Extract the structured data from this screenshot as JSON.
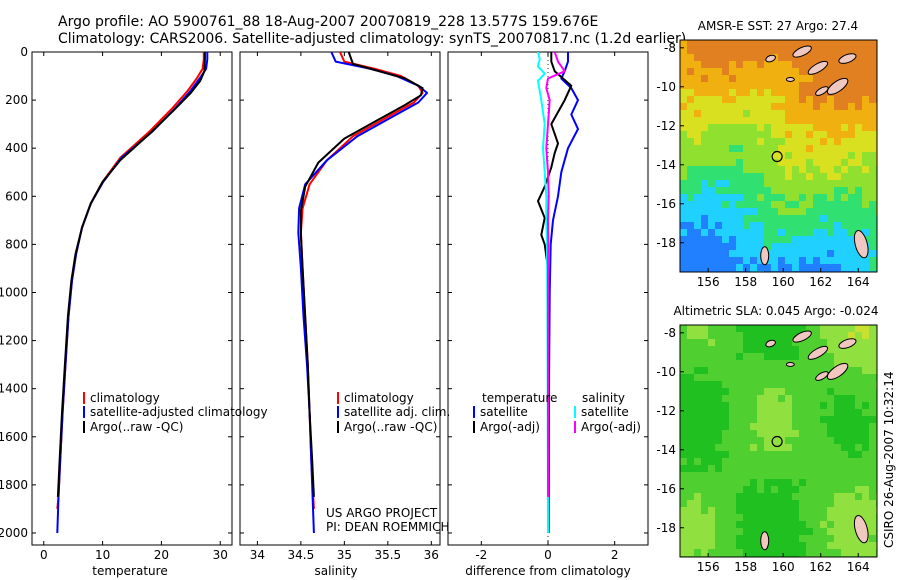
{
  "header": {
    "line1": "Argo profile: AO 5900761_88 18-Aug-2007 20070819_228 13.577S 159.676E",
    "line2": "Climatology: CARS2006. Satellite-adjusted climatology: synTS_20070817.nc (1.2d earlier)"
  },
  "side_note": "CSIRO 26-Aug-2007 10:32:14",
  "credit": [
    "US ARGO PROJECT",
    "PI: DEAN ROEMMICH"
  ],
  "colors": {
    "climatology": "#ff0000",
    "satellite": "#0000ff",
    "argo": "#000000",
    "salinity_satellite": "#00ffff",
    "salinity_argo": "#ff00ff"
  },
  "chart_data": [
    {
      "id": "temperature",
      "type": "line",
      "xlabel": "temperature",
      "xlim": [
        -2,
        32
      ],
      "ylim": [
        2050,
        0
      ],
      "xticks": [
        0,
        10,
        20,
        30
      ],
      "yticks": [
        0,
        200,
        400,
        600,
        800,
        1000,
        1200,
        1400,
        1600,
        1800,
        2000
      ],
      "legend": [
        "climatology",
        "satellite-adjusted climatology",
        "Argo(..raw -QC)"
      ],
      "legend_position": "lower-right",
      "series": [
        {
          "name": "climatology",
          "color": "#ff0000",
          "points": [
            [
              27.2,
              0
            ],
            [
              27.2,
              30
            ],
            [
              27.0,
              70
            ],
            [
              26.0,
              110
            ],
            [
              24.5,
              160
            ],
            [
              22.0,
              230
            ],
            [
              18.0,
              330
            ],
            [
              13.0,
              440
            ],
            [
              10.0,
              540
            ],
            [
              8.0,
              630
            ],
            [
              6.5,
              730
            ],
            [
              5.5,
              840
            ],
            [
              4.8,
              950
            ],
            [
              4.2,
              1100
            ],
            [
              3.7,
              1300
            ],
            [
              3.2,
              1500
            ],
            [
              2.8,
              1700
            ],
            [
              2.5,
              1850
            ],
            [
              2.3,
              1900
            ]
          ]
        },
        {
          "name": "satellite-adjusted climatology",
          "color": "#0000ff",
          "points": [
            [
              27.8,
              0
            ],
            [
              27.8,
              30
            ],
            [
              27.6,
              70
            ],
            [
              26.5,
              110
            ],
            [
              25.0,
              160
            ],
            [
              22.5,
              230
            ],
            [
              18.5,
              330
            ],
            [
              13.2,
              440
            ],
            [
              10.1,
              540
            ],
            [
              8.0,
              630
            ],
            [
              6.5,
              730
            ],
            [
              5.5,
              840
            ],
            [
              4.8,
              950
            ],
            [
              4.2,
              1100
            ],
            [
              3.7,
              1300
            ],
            [
              3.2,
              1500
            ],
            [
              2.8,
              1700
            ],
            [
              2.5,
              1850
            ],
            [
              2.3,
              2000
            ]
          ]
        },
        {
          "name": "Argo(..raw -QC)",
          "color": "#000000",
          "points": [
            [
              27.4,
              0
            ],
            [
              27.4,
              30
            ],
            [
              27.3,
              80
            ],
            [
              26.6,
              120
            ],
            [
              25.0,
              170
            ],
            [
              22.2,
              240
            ],
            [
              18.0,
              340
            ],
            [
              13.0,
              450
            ],
            [
              10.0,
              540
            ],
            [
              8.0,
              630
            ],
            [
              6.5,
              730
            ],
            [
              5.4,
              840
            ],
            [
              4.7,
              950
            ],
            [
              4.1,
              1100
            ],
            [
              3.6,
              1300
            ],
            [
              3.1,
              1500
            ],
            [
              2.7,
              1700
            ],
            [
              2.4,
              1850
            ]
          ]
        }
      ]
    },
    {
      "id": "salinity",
      "type": "line",
      "xlabel": "salinity",
      "xlim": [
        33.8,
        36.1
      ],
      "ylim": [
        2050,
        0
      ],
      "xticks": [
        34,
        34.5,
        35,
        35.5,
        36
      ],
      "legend": [
        "climatology",
        "satellite adj. clim.",
        "Argo(..raw -QC)"
      ],
      "legend_position": "lower-right",
      "series": [
        {
          "name": "climatology",
          "color": "#ff0000",
          "points": [
            [
              34.95,
              0
            ],
            [
              35.0,
              40
            ],
            [
              35.35,
              70
            ],
            [
              35.65,
              100
            ],
            [
              35.85,
              140
            ],
            [
              35.9,
              170
            ],
            [
              35.8,
              210
            ],
            [
              35.5,
              270
            ],
            [
              35.1,
              350
            ],
            [
              34.8,
              450
            ],
            [
              34.6,
              550
            ],
            [
              34.52,
              650
            ],
            [
              34.5,
              750
            ],
            [
              34.52,
              900
            ],
            [
              34.55,
              1100
            ],
            [
              34.58,
              1300
            ],
            [
              34.6,
              1500
            ],
            [
              34.62,
              1700
            ],
            [
              34.65,
              1900
            ]
          ]
        },
        {
          "name": "satellite adj. clim.",
          "color": "#0000ff",
          "points": [
            [
              34.85,
              0
            ],
            [
              34.9,
              40
            ],
            [
              35.3,
              70
            ],
            [
              35.6,
              100
            ],
            [
              35.85,
              140
            ],
            [
              35.95,
              170
            ],
            [
              35.85,
              210
            ],
            [
              35.55,
              270
            ],
            [
              35.15,
              350
            ],
            [
              34.8,
              450
            ],
            [
              34.55,
              550
            ],
            [
              34.48,
              650
            ],
            [
              34.47,
              750
            ],
            [
              34.5,
              900
            ],
            [
              34.53,
              1100
            ],
            [
              34.57,
              1300
            ],
            [
              34.6,
              1500
            ],
            [
              34.62,
              1700
            ],
            [
              34.65,
              2000
            ]
          ]
        },
        {
          "name": "Argo(..raw -QC)",
          "color": "#000000",
          "points": [
            [
              35.05,
              0
            ],
            [
              35.1,
              50
            ],
            [
              35.4,
              80
            ],
            [
              35.7,
              110
            ],
            [
              35.9,
              150
            ],
            [
              35.88,
              180
            ],
            [
              35.7,
              220
            ],
            [
              35.4,
              280
            ],
            [
              35.0,
              360
            ],
            [
              34.7,
              460
            ],
            [
              34.55,
              560
            ],
            [
              34.5,
              660
            ],
            [
              34.5,
              760
            ],
            [
              34.52,
              900
            ],
            [
              34.55,
              1100
            ],
            [
              34.58,
              1300
            ],
            [
              34.6,
              1500
            ],
            [
              34.63,
              1700
            ],
            [
              34.65,
              1850
            ]
          ]
        }
      ]
    },
    {
      "id": "difference",
      "type": "line",
      "xlabel": "difference from climatology",
      "xlim": [
        -3,
        3
      ],
      "ylim": [
        2050,
        0
      ],
      "xticks": [
        -2,
        0,
        2
      ],
      "legend": [
        "temperature",
        "satellite",
        "Argo(-adj)",
        "salinity",
        "satellite",
        "Argo(-adj)"
      ],
      "legend_position": "lower-center",
      "series": [
        {
          "name": "temperature satellite",
          "color": "#0000ff",
          "points": [
            [
              0.6,
              0
            ],
            [
              0.6,
              40
            ],
            [
              0.5,
              80
            ],
            [
              0.4,
              110
            ],
            [
              0.7,
              150
            ],
            [
              0.9,
              200
            ],
            [
              0.7,
              260
            ],
            [
              0.9,
              320
            ],
            [
              0.6,
              400
            ],
            [
              0.4,
              500
            ],
            [
              0.3,
              600
            ],
            [
              0.15,
              700
            ],
            [
              0.08,
              800
            ],
            [
              0.05,
              1000
            ],
            [
              0.03,
              1400
            ],
            [
              0.02,
              2000
            ]
          ]
        },
        {
          "name": "temperature Argo(-adj)",
          "color": "#000000",
          "points": [
            [
              0.1,
              0
            ],
            [
              0.1,
              40
            ],
            [
              0.2,
              80
            ],
            [
              0.7,
              140
            ],
            [
              0.5,
              200
            ],
            [
              0.1,
              300
            ],
            [
              0.3,
              380
            ],
            [
              0.2,
              420
            ],
            [
              0.1,
              480
            ],
            [
              -0.1,
              560
            ],
            [
              -0.3,
              620
            ],
            [
              -0.1,
              690
            ],
            [
              -0.2,
              760
            ],
            [
              -0.1,
              800
            ],
            [
              0.0,
              900
            ],
            [
              0.0,
              1200
            ],
            [
              0.0,
              1850
            ]
          ]
        },
        {
          "name": "salinity satellite",
          "color": "#00ffff",
          "points": [
            [
              -0.3,
              0
            ],
            [
              -0.25,
              30
            ],
            [
              -0.3,
              60
            ],
            [
              -0.1,
              90
            ],
            [
              -0.3,
              120
            ],
            [
              -0.2,
              200
            ],
            [
              -0.1,
              300
            ],
            [
              -0.15,
              400
            ],
            [
              -0.1,
              500
            ],
            [
              -0.05,
              600
            ],
            [
              -0.05,
              700
            ],
            [
              -0.03,
              800
            ],
            [
              -0.02,
              1000
            ],
            [
              -0.01,
              1400
            ],
            [
              0.0,
              2000
            ]
          ]
        },
        {
          "name": "salinity Argo(-adj)",
          "color": "#ff00ff",
          "points": [
            [
              0.2,
              0
            ],
            [
              0.3,
              40
            ],
            [
              0.5,
              80
            ],
            [
              0.0,
              110
            ],
            [
              -0.05,
              150
            ],
            [
              0.05,
              200
            ],
            [
              0.0,
              300
            ],
            [
              -0.05,
              400
            ],
            [
              0.0,
              500
            ],
            [
              0.02,
              600
            ],
            [
              0.0,
              700
            ],
            [
              0.01,
              800
            ],
            [
              0.0,
              900
            ],
            [
              0.0,
              1200
            ],
            [
              0.0,
              1850
            ]
          ]
        }
      ]
    },
    {
      "id": "sst_map",
      "type": "heatmap",
      "title": "AMSR-E SST: 27  Argo: 27.4",
      "xlim": [
        154.5,
        165
      ],
      "ylim": [
        -19.5,
        -7.6
      ],
      "xticks": [
        156,
        158,
        160,
        162,
        164
      ],
      "yticks": [
        -8,
        -10,
        -12,
        -14,
        -16,
        -18
      ],
      "marker": [
        159.676,
        -13.577
      ],
      "colors": [
        "#2080ff",
        "#20d0ff",
        "#30e070",
        "#90e030",
        "#d8e020",
        "#f0b010",
        "#e08020"
      ]
    },
    {
      "id": "sla_map",
      "type": "heatmap",
      "title": "Altimetric SLA: 0.045  Argo: -0.024",
      "xlim": [
        154.5,
        165
      ],
      "ylim": [
        -19.5,
        -7.6
      ],
      "xticks": [
        156,
        158,
        160,
        162,
        164
      ],
      "yticks": [
        -8,
        -10,
        -12,
        -14,
        -16,
        -18
      ],
      "marker": [
        159.676,
        -13.577
      ],
      "colors": [
        "#20c020",
        "#50d030",
        "#90e040",
        "#c8e030",
        "#e8d020"
      ]
    }
  ]
}
